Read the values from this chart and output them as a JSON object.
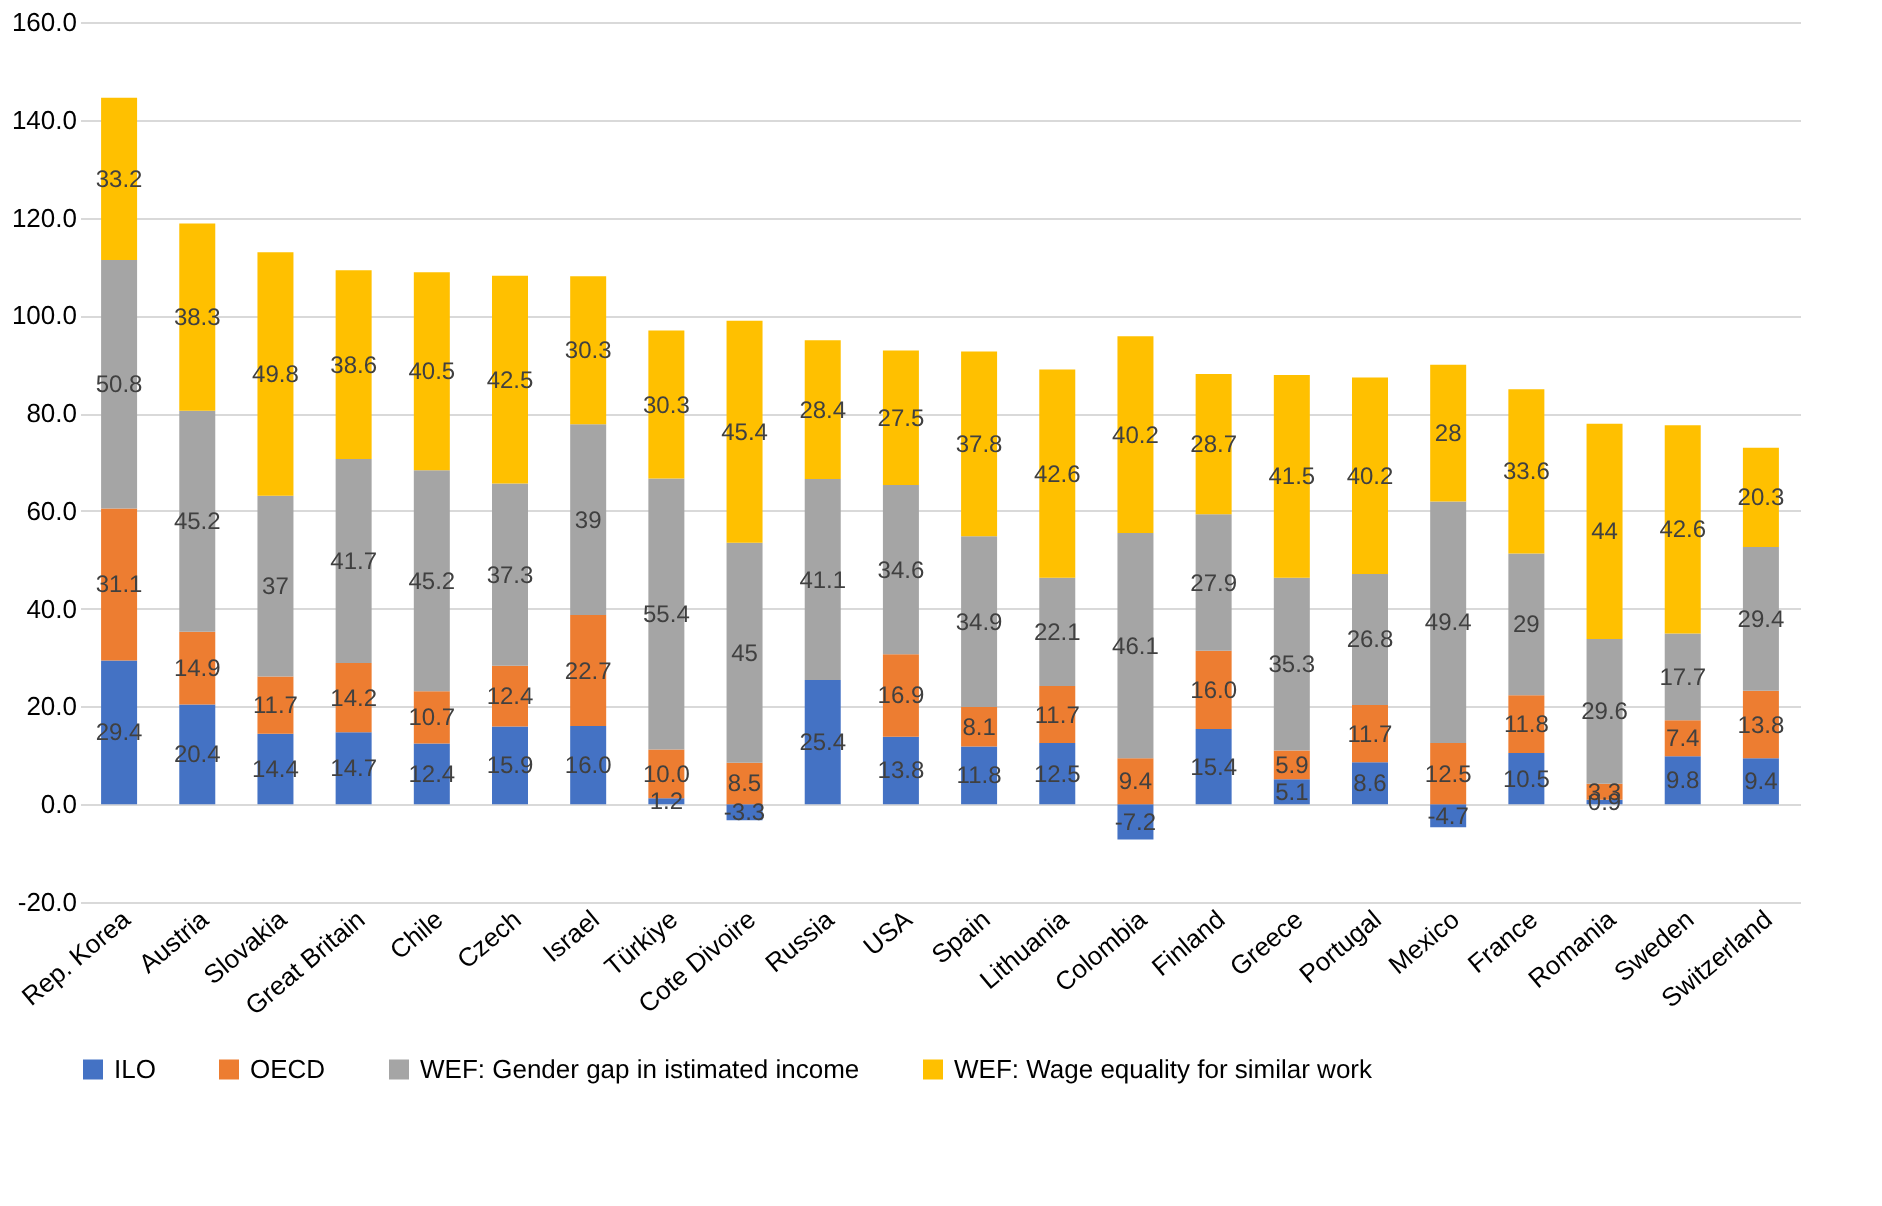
{
  "chart_data": {
    "type": "bar",
    "stacked": true,
    "categories": [
      "Rep. Korea",
      "Austria",
      "Slovakia",
      "Great Britain",
      "Chile",
      "Czech",
      "Israel",
      "Türkiye",
      "Cote Divoire",
      "Russia",
      "USA",
      "Spain",
      "Lithuania",
      "Colombia",
      "Finland",
      "Greece",
      "Portugal",
      "Mexico",
      "France",
      "Romania",
      "Sweden",
      "Switzerland"
    ],
    "series": [
      {
        "name": "ILO",
        "color": "#4472c4",
        "values": [
          29.4,
          20.4,
          14.4,
          14.7,
          12.4,
          15.9,
          16.0,
          1.2,
          -3.3,
          25.4,
          13.8,
          11.8,
          12.5,
          -7.2,
          15.4,
          5.1,
          8.6,
          -4.7,
          10.5,
          0.9,
          9.8,
          9.4
        ],
        "value_labels": [
          "29.4",
          "20.4",
          "14.4",
          "14.7",
          "12.4",
          "15.9",
          "16.0",
          "1.2",
          "-3.3",
          "25.4",
          "13.8",
          "11.8",
          "12.5",
          "-7.2",
          "15.4",
          "5.1",
          "8.6",
          "-4.7",
          "10.5",
          "0.9",
          "9.8",
          "9.4"
        ]
      },
      {
        "name": "OECD",
        "color": "#ed7d31",
        "values": [
          31.1,
          14.9,
          11.7,
          14.2,
          10.7,
          12.4,
          22.7,
          10.0,
          8.5,
          null,
          16.9,
          8.1,
          11.7,
          9.4,
          16.0,
          5.9,
          11.7,
          12.5,
          11.8,
          3.3,
          7.4,
          13.8
        ],
        "value_labels": [
          "31.1",
          "14.9",
          "11.7",
          "14.2",
          "10.7",
          "12.4",
          "22.7",
          "10.0",
          "8.5",
          null,
          "16.9",
          "8.1",
          "11.7",
          "9.4",
          "16.0",
          "5.9",
          "11.7",
          "12.5",
          "11.8",
          "3.3",
          "7.4",
          "13.8"
        ]
      },
      {
        "name": "WEF: Gender gap in istimated income",
        "color": "#a5a5a5",
        "values": [
          50.8,
          45.2,
          37,
          41.7,
          45.2,
          37.3,
          39,
          55.4,
          45,
          41.1,
          34.6,
          34.9,
          22.1,
          46.1,
          27.9,
          35.3,
          26.8,
          49.4,
          29,
          29.6,
          17.7,
          29.4
        ],
        "value_labels": [
          "50.8",
          "45.2",
          "37",
          "41.7",
          "45.2",
          "37.3",
          "39",
          "55.4",
          "45",
          "41.1",
          "34.6",
          "34.9",
          "22.1",
          "46.1",
          "27.9",
          "35.3",
          "26.8",
          "49.4",
          "29",
          "29.6",
          "17.7",
          "29.4"
        ]
      },
      {
        "name": "WEF: Wage equality for similar work",
        "color": "#ffc000",
        "values": [
          33.2,
          38.3,
          49.8,
          38.6,
          40.5,
          42.5,
          30.3,
          30.3,
          45.4,
          28.4,
          27.5,
          37.8,
          42.6,
          40.2,
          28.7,
          41.5,
          40.2,
          28,
          33.6,
          44,
          42.6,
          20.3
        ],
        "value_labels": [
          "33.2",
          "38.3",
          "49.8",
          "38.6",
          "40.5",
          "42.5",
          "30.3",
          "30.3",
          "45.4",
          "28.4",
          "27.5",
          "37.8",
          "42.6",
          "40.2",
          "28.7",
          "41.5",
          "40.2",
          "28",
          "33.6",
          "44",
          "42.6",
          "20.3"
        ]
      }
    ],
    "ylim": [
      -20,
      160
    ],
    "yticks": [
      {
        "value": -20,
        "label": "-20.0"
      },
      {
        "value": 0,
        "label": "0.0"
      },
      {
        "value": 20,
        "label": "20.0"
      },
      {
        "value": 40,
        "label": "40.0"
      },
      {
        "value": 60,
        "label": "60.0"
      },
      {
        "value": 80,
        "label": "80.0"
      },
      {
        "value": 100,
        "label": "100.0"
      },
      {
        "value": 120,
        "label": "120.0"
      },
      {
        "value": 140,
        "label": "140.0"
      },
      {
        "value": 160,
        "label": "160.0"
      }
    ],
    "grid": "y",
    "legend": "bottom"
  }
}
